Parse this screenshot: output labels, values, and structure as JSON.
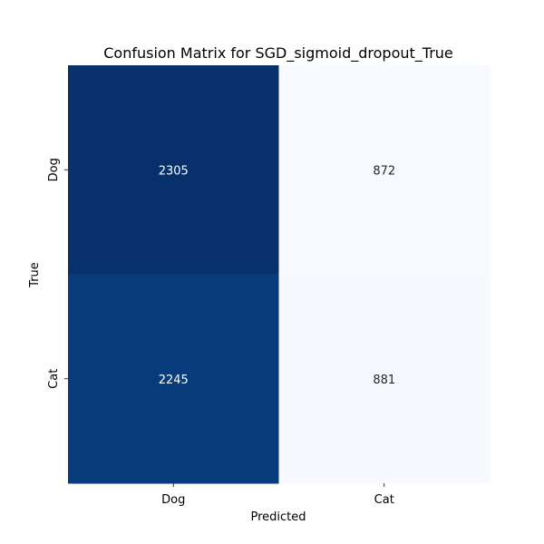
{
  "chart_data": {
    "type": "heatmap",
    "title": "Confusion Matrix for SGD_sigmoid_dropout_True",
    "xlabel": "Predicted",
    "ylabel": "True",
    "x_categories": [
      "Dog",
      "Cat"
    ],
    "y_categories": [
      "Dog",
      "Cat"
    ],
    "values": [
      [
        2305,
        872
      ],
      [
        2245,
        881
      ]
    ],
    "colormap": "Blues",
    "colorbar": false,
    "grid": false
  }
}
